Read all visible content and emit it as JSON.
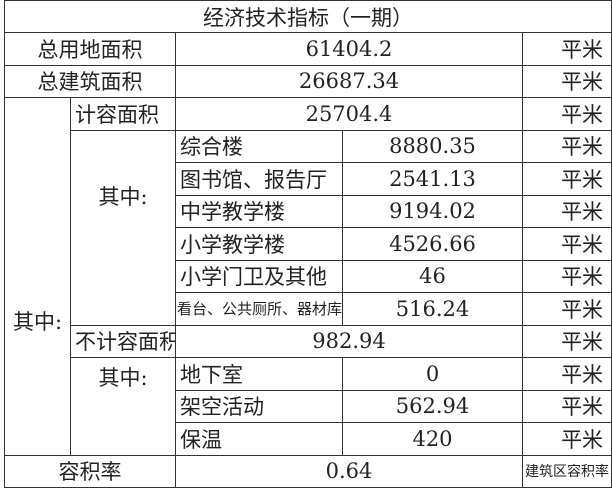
{
  "title": "经济技术指标（一期）",
  "unit": "平米",
  "rows": {
    "land": {
      "label": "总用地面积",
      "value": "61404.2"
    },
    "building": {
      "label": "总建筑面积",
      "value": "26687.34"
    },
    "of_which": "其中:",
    "far_area": {
      "label": "计容面积",
      "value": "25704.4"
    },
    "far_items": [
      {
        "label": "综合楼",
        "value": "8880.35"
      },
      {
        "label": "图书馆、报告厅",
        "value": "2541.13"
      },
      {
        "label": "中学教学楼",
        "value": "9194.02"
      },
      {
        "label": "小学教学楼",
        "value": "4526.66"
      },
      {
        "label": "小学门卫及其他",
        "value": "46"
      },
      {
        "label": "看台、公共厕所、器材库",
        "value": "516.24"
      }
    ],
    "nonfar_area": {
      "label": "不计容面积",
      "value": "982.94"
    },
    "nonfar_items": [
      {
        "label": "地下室",
        "value": "0"
      },
      {
        "label": "架空活动",
        "value": "562.94"
      },
      {
        "label": "保温",
        "value": "420"
      }
    ],
    "ratio": {
      "label": "容积率",
      "value": "0.64",
      "unit": "建筑区容积率"
    }
  }
}
